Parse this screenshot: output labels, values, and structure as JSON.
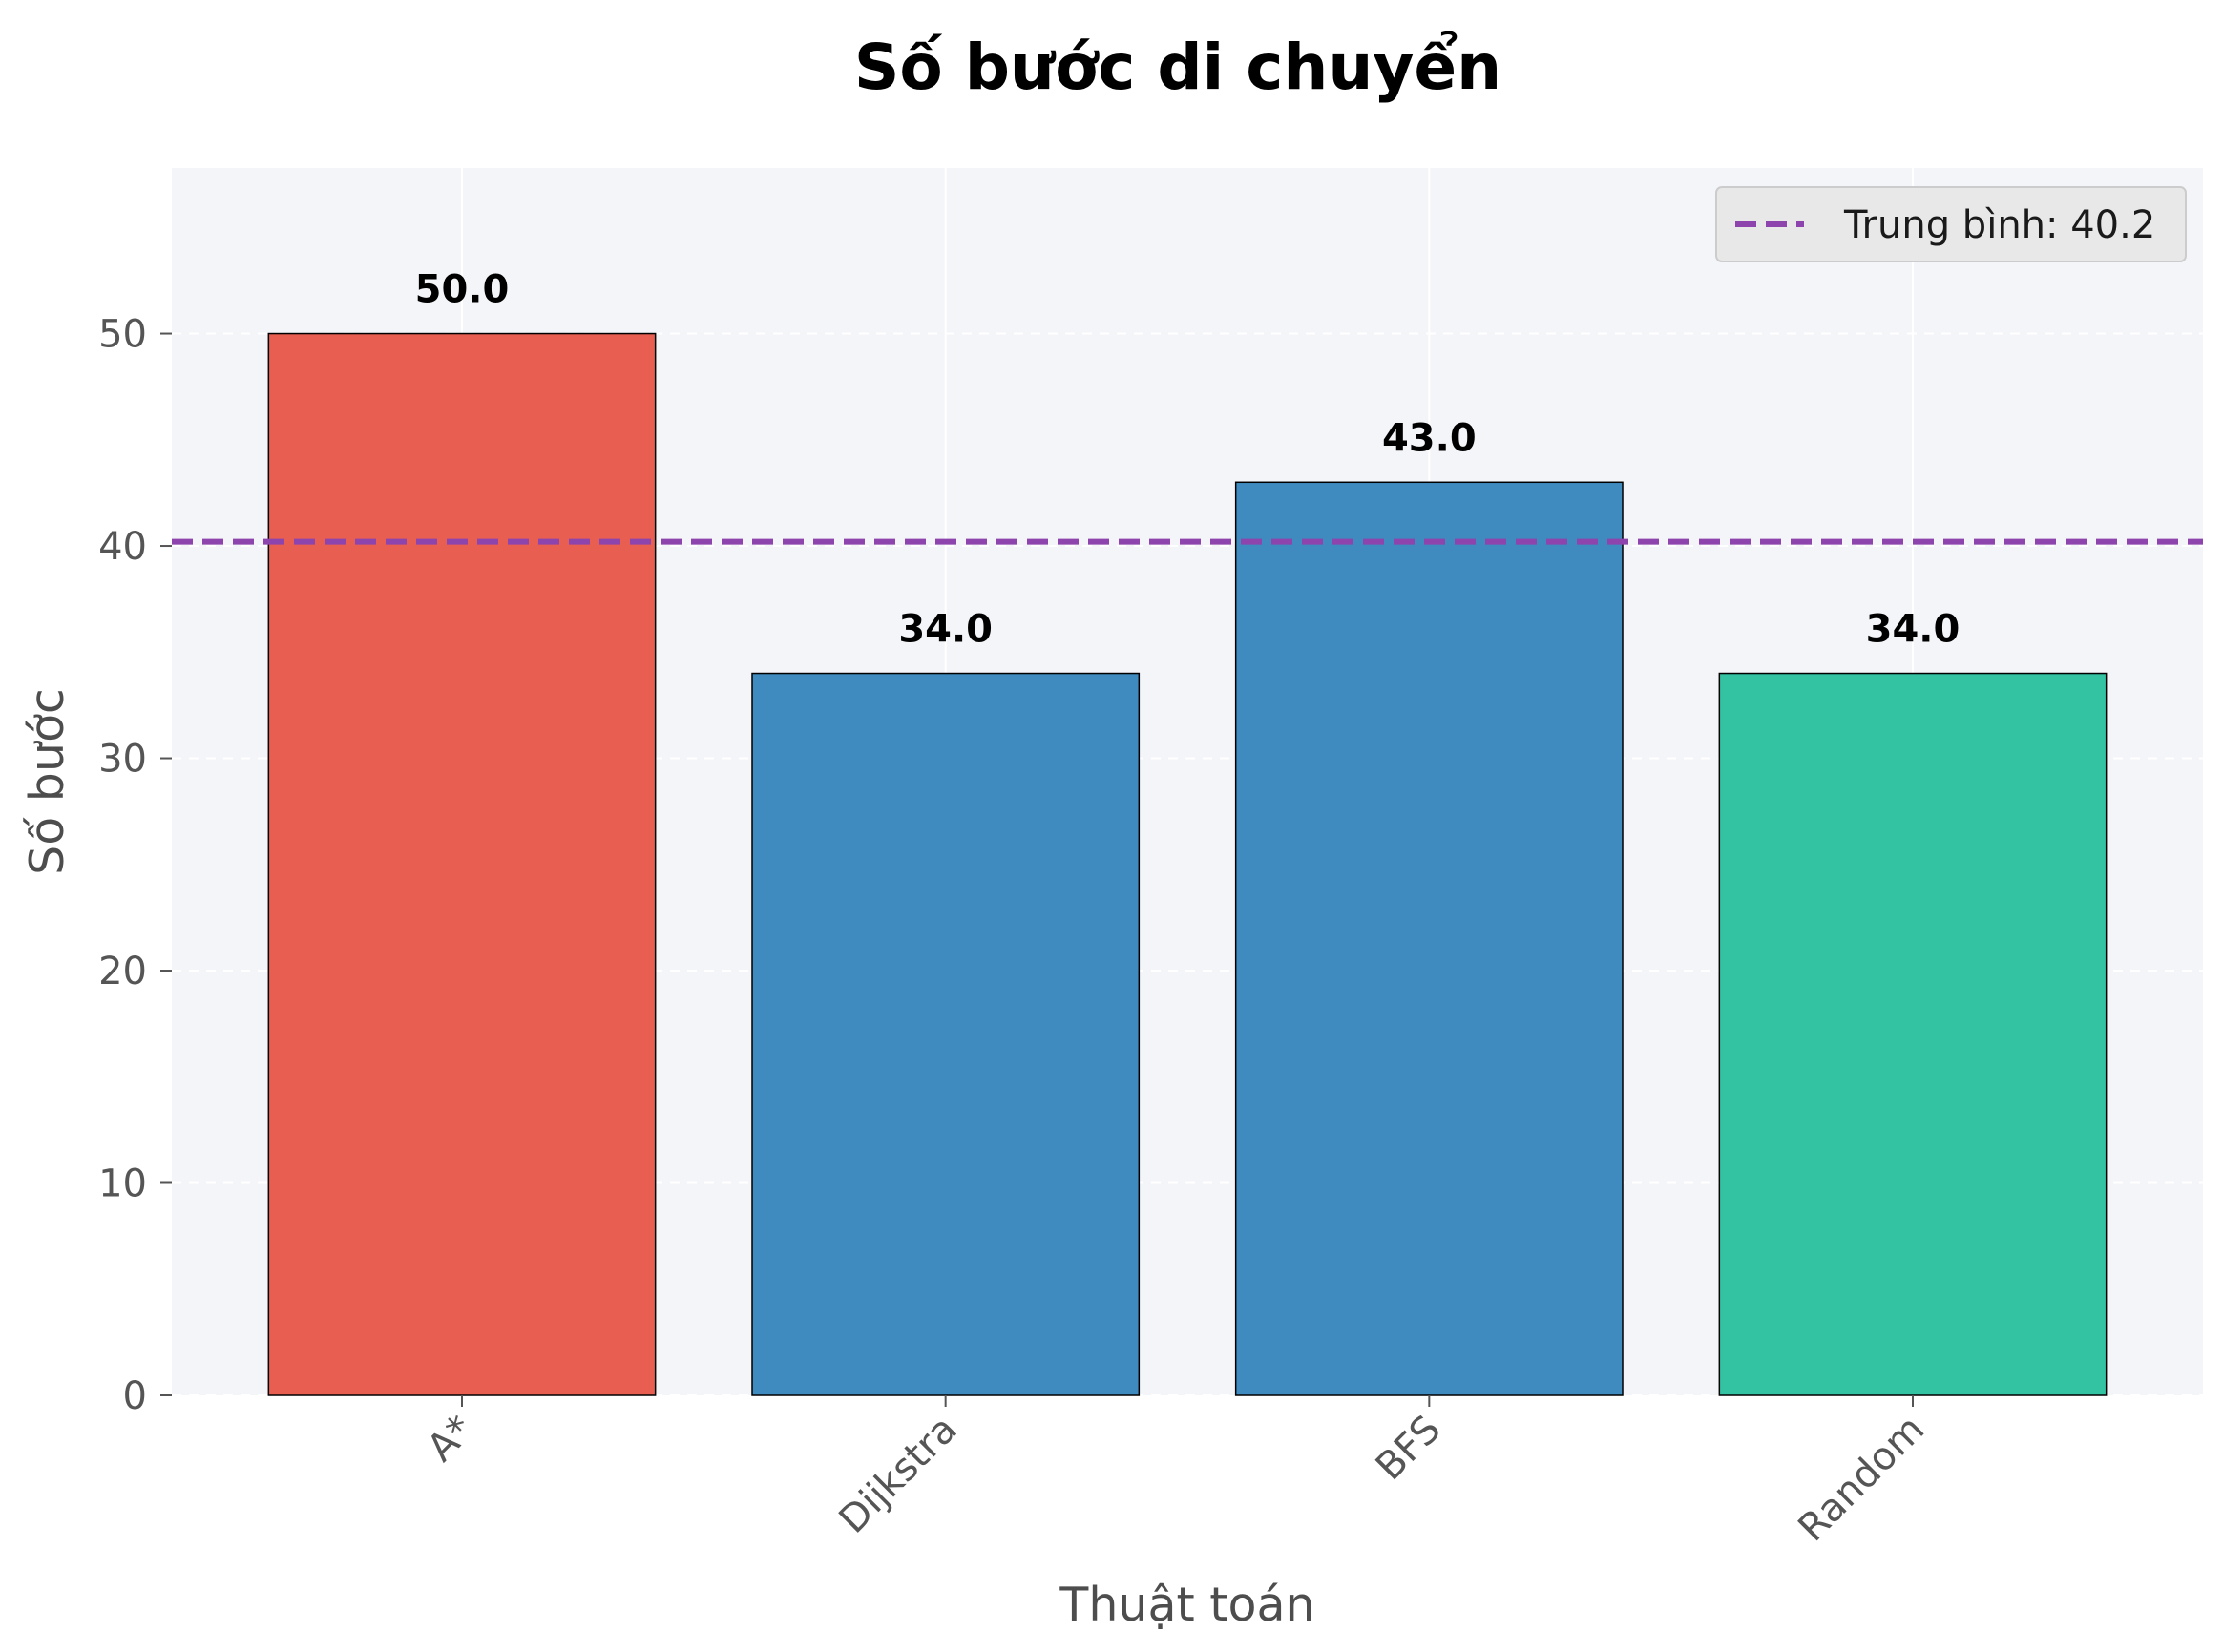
{
  "chart_data": {
    "type": "bar",
    "title": "Số bước di chuyển",
    "xlabel": "Thuật toán",
    "ylabel": "Số bước",
    "categories": [
      "A*",
      "Dijkstra",
      "BFS",
      "Random"
    ],
    "values": [
      50.0,
      34.0,
      43.0,
      34.0
    ],
    "value_labels": [
      "50.0",
      "34.0",
      "43.0",
      "34.0"
    ],
    "bar_colors": [
      "#e85e50",
      "#3f8bbf",
      "#3f8bbf",
      "#33c3a3"
    ],
    "ylim": [
      0,
      57.8
    ],
    "yticks": [
      0,
      10,
      20,
      30,
      40,
      50
    ],
    "mean_line": {
      "value": 40.2,
      "label": "Trung bình: 40.2",
      "color": "#8e44ad"
    },
    "legend": {
      "position": "top-right",
      "entries": [
        "Trung bình: 40.2"
      ]
    },
    "grid": true,
    "plot_background": "#f4f5f9"
  }
}
